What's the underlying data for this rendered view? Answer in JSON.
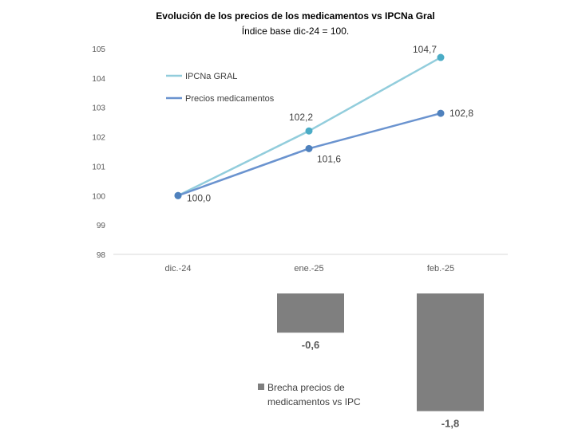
{
  "chart_data": [
    {
      "type": "line",
      "title": "Evolución de los precios de los medicamentos vs IPCNa Gral",
      "subtitle": "Índice base dic-24 = 100.",
      "categories": [
        "dic.-24",
        "ene.-25",
        "feb.-25"
      ],
      "y_ticks": [
        "98",
        "99",
        "100",
        "101",
        "102",
        "103",
        "104",
        "105"
      ],
      "ylim": [
        98,
        105
      ],
      "grid": false,
      "legend_position": "top-left",
      "series": [
        {
          "name": "IPCNa GRAL",
          "values": [
            100.0,
            102.2,
            104.7
          ],
          "data_labels": [
            "",
            "102,2",
            "104,7"
          ],
          "color": "#92CDDC",
          "marker_color": "#4BACC6"
        },
        {
          "name": "Precios medicamentos",
          "values": [
            100.0,
            101.6,
            102.8
          ],
          "data_labels": [
            "100,0",
            "101,6",
            "102,8"
          ],
          "color": "#6A93CF",
          "marker_color": "#4F81BD"
        }
      ]
    },
    {
      "type": "bar",
      "categories": [
        "ene.-25",
        "feb.-25"
      ],
      "series": [
        {
          "name": "Brecha precios de medicamentos vs IPC",
          "values": [
            -0.6,
            -1.8
          ],
          "data_labels": [
            "-0,6",
            "-1,8"
          ],
          "color": "#7F7F7F"
        }
      ],
      "legend_lines": [
        "Brecha precios de",
        "medicamentos vs IPC"
      ],
      "legend_position": "bottom-center"
    }
  ]
}
